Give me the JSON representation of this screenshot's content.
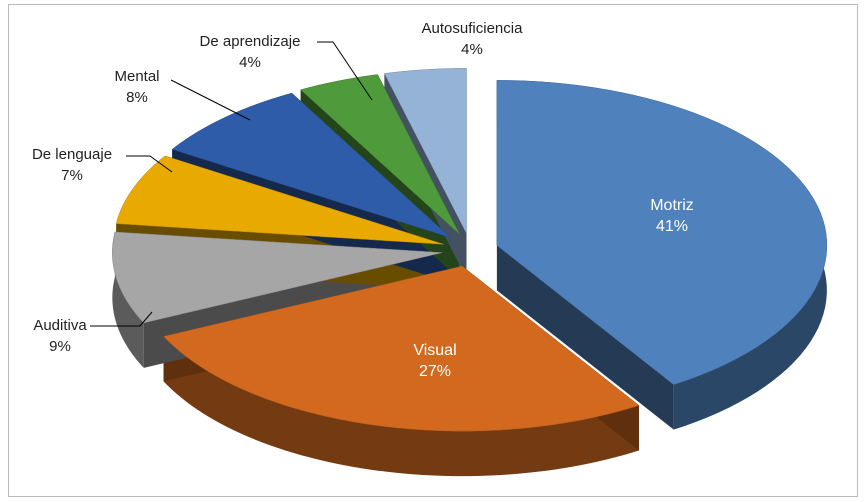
{
  "chart_data": {
    "type": "pie",
    "categories": [
      "Motriz",
      "Visual",
      "Auditiva",
      "De lenguaje",
      "Mental",
      "De aprendizaje",
      "Autosuficiencia"
    ],
    "values": [
      41,
      27,
      9,
      7,
      8,
      4,
      4
    ],
    "value_labels": [
      "41%",
      "27%",
      "9%",
      "7%",
      "8%",
      "4%",
      "4%"
    ],
    "colors": [
      "#4f81bd",
      "#d2691e",
      "#a6a6a6",
      "#e8a900",
      "#2e5ca8",
      "#4f9a3a",
      "#95b3d7"
    ]
  }
}
